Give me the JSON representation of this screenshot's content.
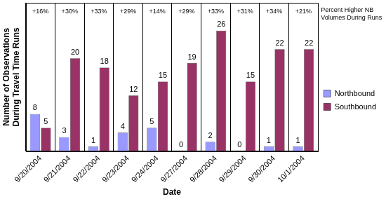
{
  "chart_data": {
    "type": "bar",
    "categories": [
      "9/20/2004",
      "9/21/2004",
      "9/22/2004",
      "9/23/2004",
      "9/24/2004",
      "9/27/2004",
      "9/28/2004",
      "9/29/2004",
      "9/30/2004",
      "10/1/2004"
    ],
    "series": [
      {
        "name": "Northbound",
        "color": "#9999ff",
        "values": [
          8,
          3,
          1,
          4,
          5,
          0,
          2,
          0,
          1,
          1
        ]
      },
      {
        "name": "Southbound",
        "color": "#993366",
        "values": [
          5,
          20,
          18,
          12,
          15,
          19,
          26,
          15,
          22,
          22
        ]
      }
    ],
    "x_label": "Date",
    "y_label": "Number of Observations During Travel Time Runs",
    "annotation_title": "Percent Higher NB Volumes During Runs",
    "annotations": [
      "+16%",
      "+30%",
      "+33%",
      "+29%",
      "+14%",
      "+29%",
      "+33%",
      "+31%",
      "+34%",
      "+21%"
    ],
    "ylim": [
      0,
      32
    ],
    "data_labels": true,
    "tick_labels": "x",
    "grid": "x",
    "legend": "right"
  }
}
